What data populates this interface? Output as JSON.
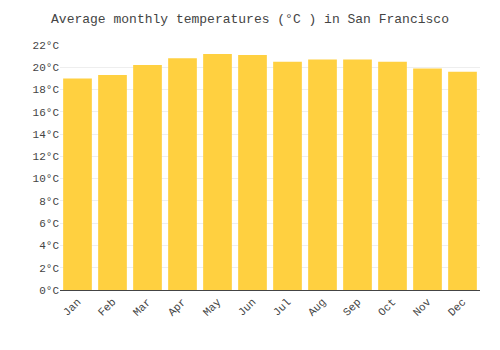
{
  "chart_data": {
    "type": "bar",
    "title": "Average monthly temperatures (°C ) in San Francisco",
    "categories": [
      "Jan",
      "Feb",
      "Mar",
      "Apr",
      "May",
      "Jun",
      "Jul",
      "Aug",
      "Sep",
      "Oct",
      "Nov",
      "Dec"
    ],
    "values": [
      19.0,
      19.3,
      20.2,
      20.8,
      21.2,
      21.1,
      20.5,
      20.7,
      20.7,
      20.5,
      19.9,
      19.6
    ],
    "color": "#FFD040",
    "ylim": [
      0,
      22
    ],
    "yticks": [
      {
        "value": 0,
        "label": "0°C"
      },
      {
        "value": 2,
        "label": "2°C"
      },
      {
        "value": 4,
        "label": "4°C"
      },
      {
        "value": 6,
        "label": "6°C"
      },
      {
        "value": 8,
        "label": "8°C"
      },
      {
        "value": 10,
        "label": "10°C"
      },
      {
        "value": 12,
        "label": "12°C"
      },
      {
        "value": 14,
        "label": "14°C"
      },
      {
        "value": 16,
        "label": "16°C"
      },
      {
        "value": 18,
        "label": "18°C"
      },
      {
        "value": 20,
        "label": "20°C"
      },
      {
        "value": 22,
        "label": "22°C"
      }
    ],
    "grid": true
  }
}
